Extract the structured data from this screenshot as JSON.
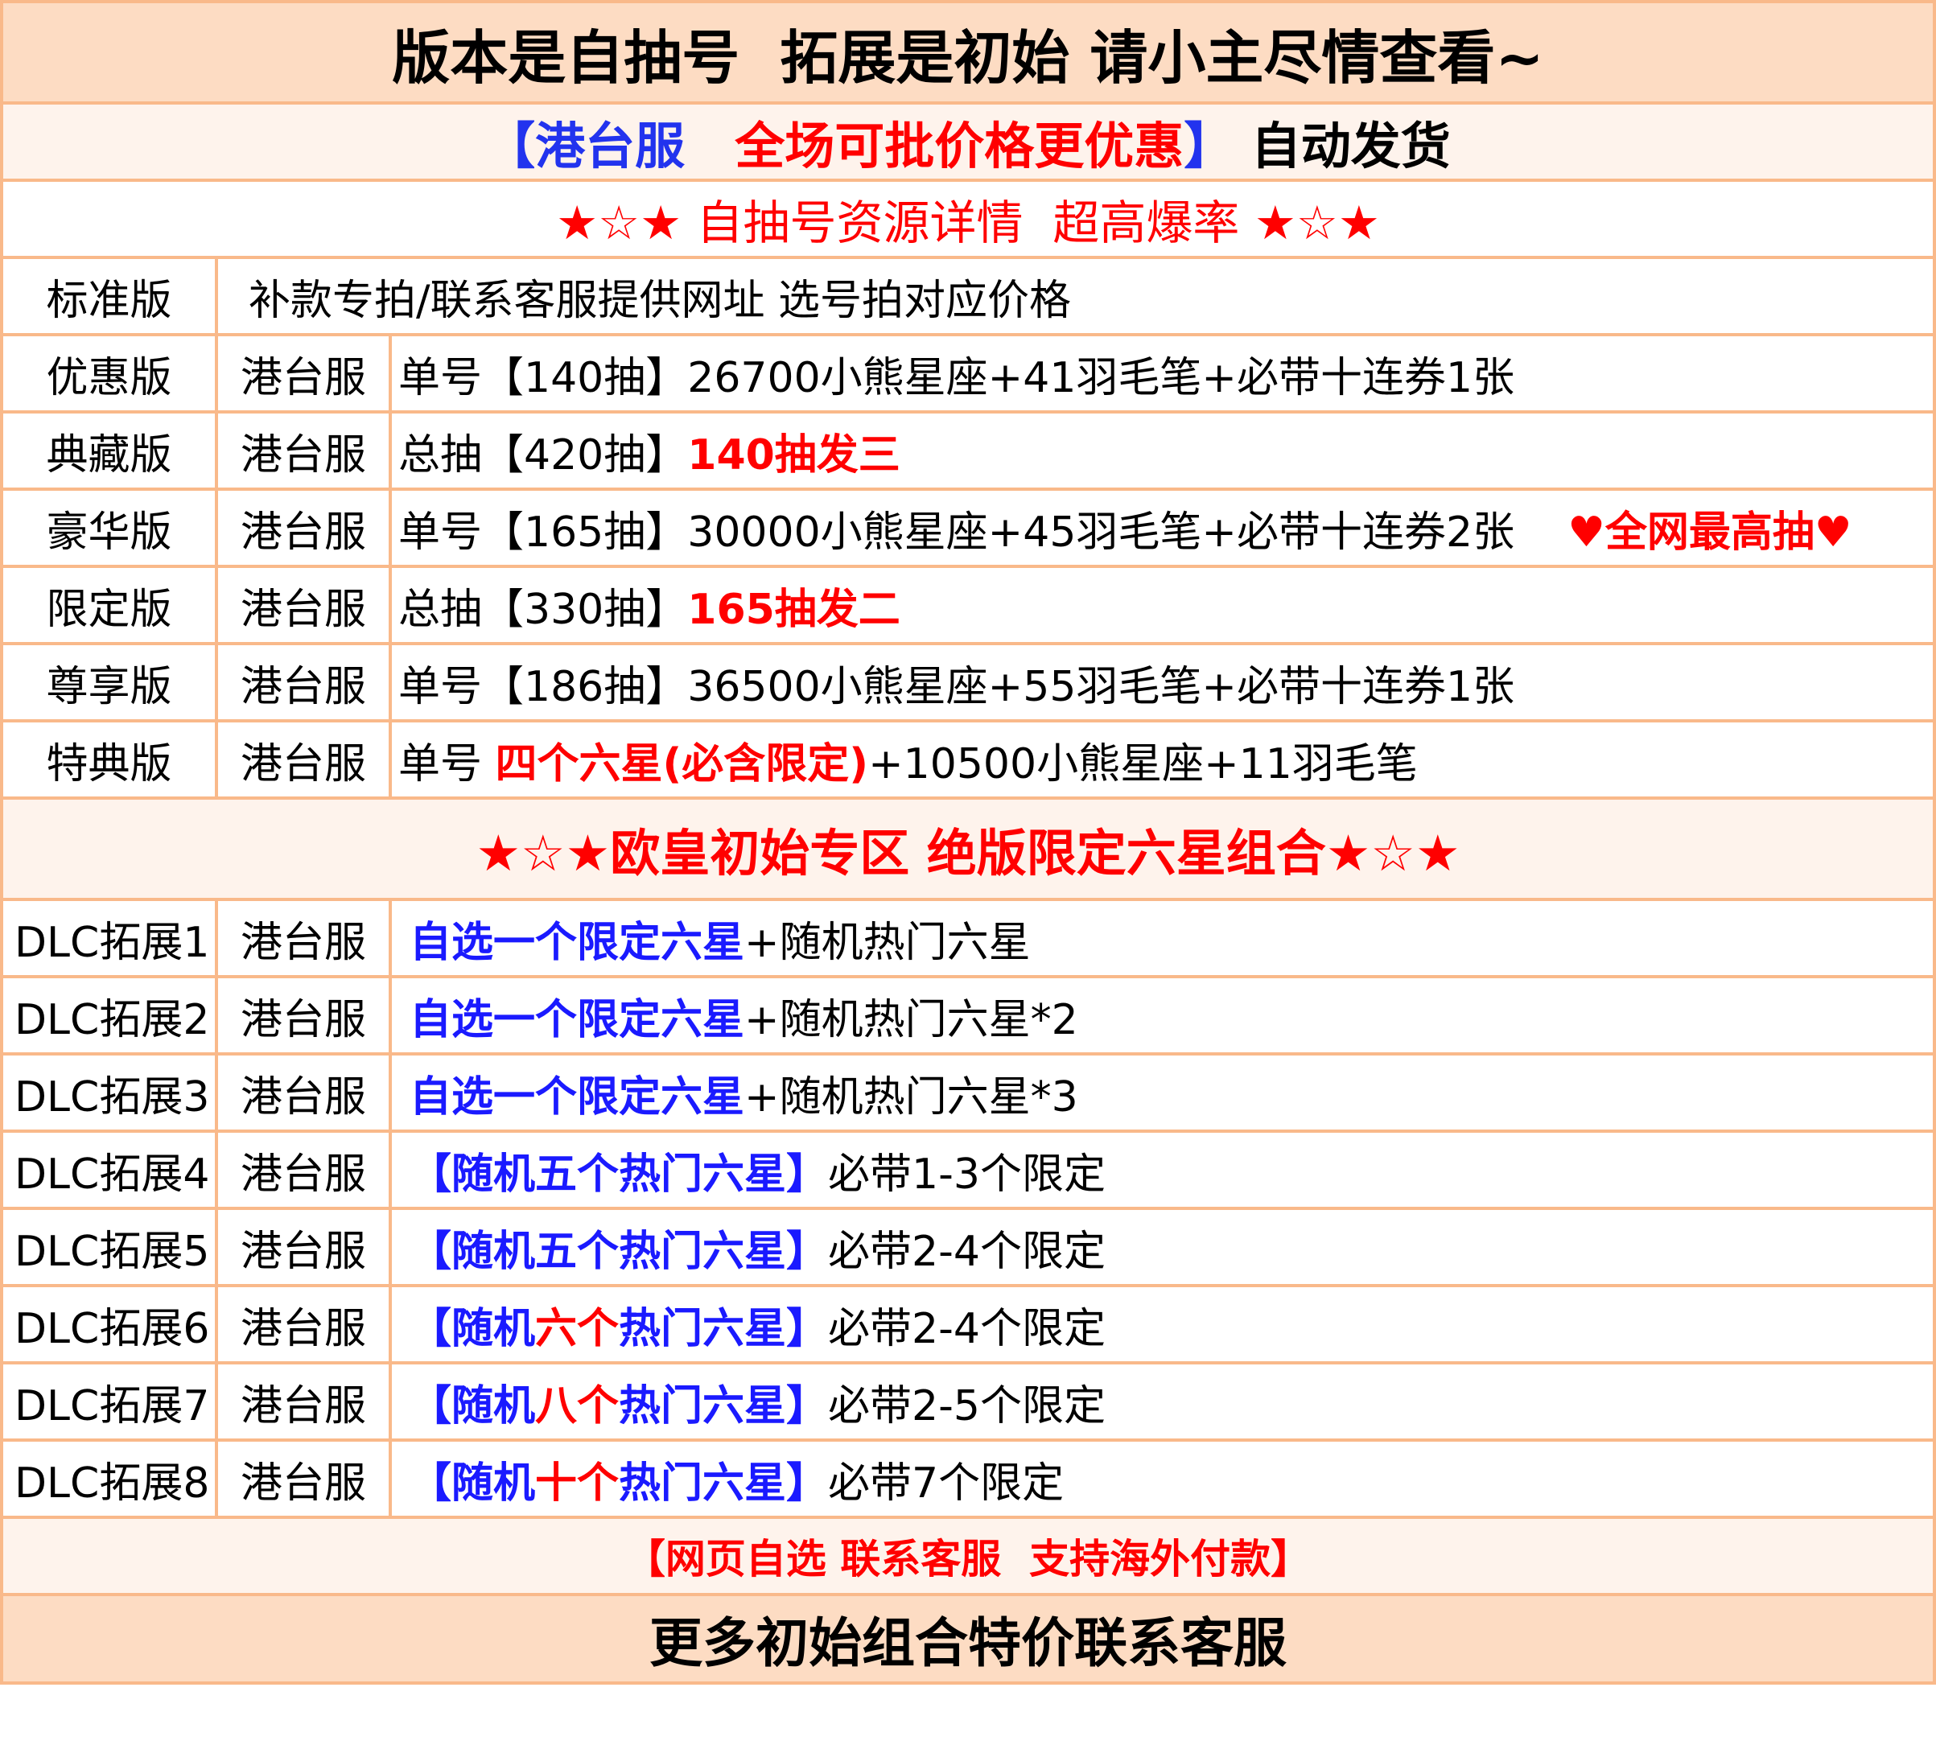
{
  "colors": {
    "red": "#ff0000",
    "blue": "#1a1aff",
    "black": "#000000",
    "border": "#f9b98a",
    "title_bg": "#fddcc3",
    "light_bg": "#fef3ec"
  },
  "title": [
    {
      "t": "版本是自抽号  拓展是初始 请小主尽情查看~",
      "c": "#000000"
    }
  ],
  "subtitle": [
    {
      "t": "【港台服　",
      "c": "#2233ee"
    },
    {
      "t": "全场可批价格更优惠",
      "c": "#ff0000"
    },
    {
      "t": "】",
      "c": "#2233ee"
    },
    {
      "t": " 自动发货",
      "c": "#000000"
    }
  ],
  "resource_header": [
    {
      "t": "★☆★ 自抽号资源详情  超高爆率 ★☆★",
      "c": "#ff0000"
    }
  ],
  "standard": {
    "name": "标准版",
    "text": "补款专拍/联系客服提供网址 选号拍对应价格"
  },
  "versions": [
    {
      "name": "优惠版",
      "server": "港台服",
      "segs": [
        {
          "t": "单号【140抽】26700小熊星座+41羽毛笔+必带十连券1张",
          "c": "#000000"
        }
      ]
    },
    {
      "name": "典藏版",
      "server": "港台服",
      "segs": [
        {
          "t": "总抽【420抽】",
          "c": "#000000"
        },
        {
          "t": "140抽发三",
          "c": "#ff0000",
          "b": true
        }
      ]
    },
    {
      "name": "豪华版",
      "server": "港台服",
      "segs": [
        {
          "t": "单号【165抽】30000小熊星座+45羽毛笔+必带十连券2张",
          "c": "#000000"
        },
        {
          "t": "    ",
          "c": "#000000"
        },
        {
          "t": "♥全网最高抽♥",
          "c": "#ff0000",
          "b": true
        }
      ]
    },
    {
      "name": "限定版",
      "server": "港台服",
      "segs": [
        {
          "t": "总抽【330抽】",
          "c": "#000000"
        },
        {
          "t": "165抽发二",
          "c": "#ff0000",
          "b": true
        }
      ]
    },
    {
      "name": "尊享版",
      "server": "港台服",
      "segs": [
        {
          "t": "单号【186抽】36500小熊星座+55羽毛笔+必带十连券1张",
          "c": "#000000"
        }
      ]
    },
    {
      "name": "特典版",
      "server": "港台服",
      "segs": [
        {
          "t": "单号 ",
          "c": "#000000"
        },
        {
          "t": "四个六星(必含限定)",
          "c": "#ff0000",
          "b": true
        },
        {
          "t": "+10500小熊星座+11羽毛笔",
          "c": "#000000"
        }
      ]
    }
  ],
  "section_header": [
    {
      "t": "★☆★欧皇初始专区 绝版限定六星组合★☆★",
      "c": "#ff0000"
    }
  ],
  "dlc": [
    {
      "name": "DLC拓展1",
      "server": "港台服",
      "segs": [
        {
          "t": "自选一个限定六星",
          "c": "#1a1aff",
          "b": true
        },
        {
          "t": "+随机热门六星",
          "c": "#000000"
        }
      ]
    },
    {
      "name": "DLC拓展2",
      "server": "港台服",
      "segs": [
        {
          "t": "自选一个限定六星",
          "c": "#1a1aff",
          "b": true
        },
        {
          "t": "+随机热门六星*2",
          "c": "#000000"
        }
      ]
    },
    {
      "name": "DLC拓展3",
      "server": "港台服",
      "segs": [
        {
          "t": "自选一个限定六星",
          "c": "#1a1aff",
          "b": true
        },
        {
          "t": "+随机热门六星*3",
          "c": "#000000"
        }
      ]
    },
    {
      "name": "DLC拓展4",
      "server": "港台服",
      "segs": [
        {
          "t": "【随机五个热门六星】",
          "c": "#1a1aff",
          "b": true
        },
        {
          "t": "必带1-3个限定",
          "c": "#000000"
        }
      ]
    },
    {
      "name": "DLC拓展5",
      "server": "港台服",
      "segs": [
        {
          "t": "【随机五个热门六星】",
          "c": "#1a1aff",
          "b": true
        },
        {
          "t": "必带2-4个限定",
          "c": "#000000"
        }
      ]
    },
    {
      "name": "DLC拓展6",
      "server": "港台服",
      "segs": [
        {
          "t": "【随机",
          "c": "#1a1aff",
          "b": true
        },
        {
          "t": "六个",
          "c": "#ff0000",
          "b": true
        },
        {
          "t": "热门六星】",
          "c": "#1a1aff",
          "b": true
        },
        {
          "t": "必带2-4个限定",
          "c": "#000000"
        }
      ]
    },
    {
      "name": "DLC拓展7",
      "server": "港台服",
      "segs": [
        {
          "t": "【随机",
          "c": "#1a1aff",
          "b": true
        },
        {
          "t": "八个",
          "c": "#ff0000",
          "b": true
        },
        {
          "t": "热门六星】",
          "c": "#1a1aff",
          "b": true
        },
        {
          "t": "必带2-5个限定",
          "c": "#000000"
        }
      ]
    },
    {
      "name": "DLC拓展8",
      "server": "港台服",
      "segs": [
        {
          "t": "【随机",
          "c": "#1a1aff",
          "b": true
        },
        {
          "t": "十个",
          "c": "#ff0000",
          "b": true
        },
        {
          "t": "热门六星】",
          "c": "#1a1aff",
          "b": true
        },
        {
          "t": "必带7个限定",
          "c": "#000000"
        }
      ]
    }
  ],
  "note": [
    {
      "t": "【网页自选 联系客服  支持海外付款】",
      "c": "#ff0000"
    }
  ],
  "footer": [
    {
      "t": "更多初始组合特价联系客服",
      "c": "#000000"
    }
  ]
}
